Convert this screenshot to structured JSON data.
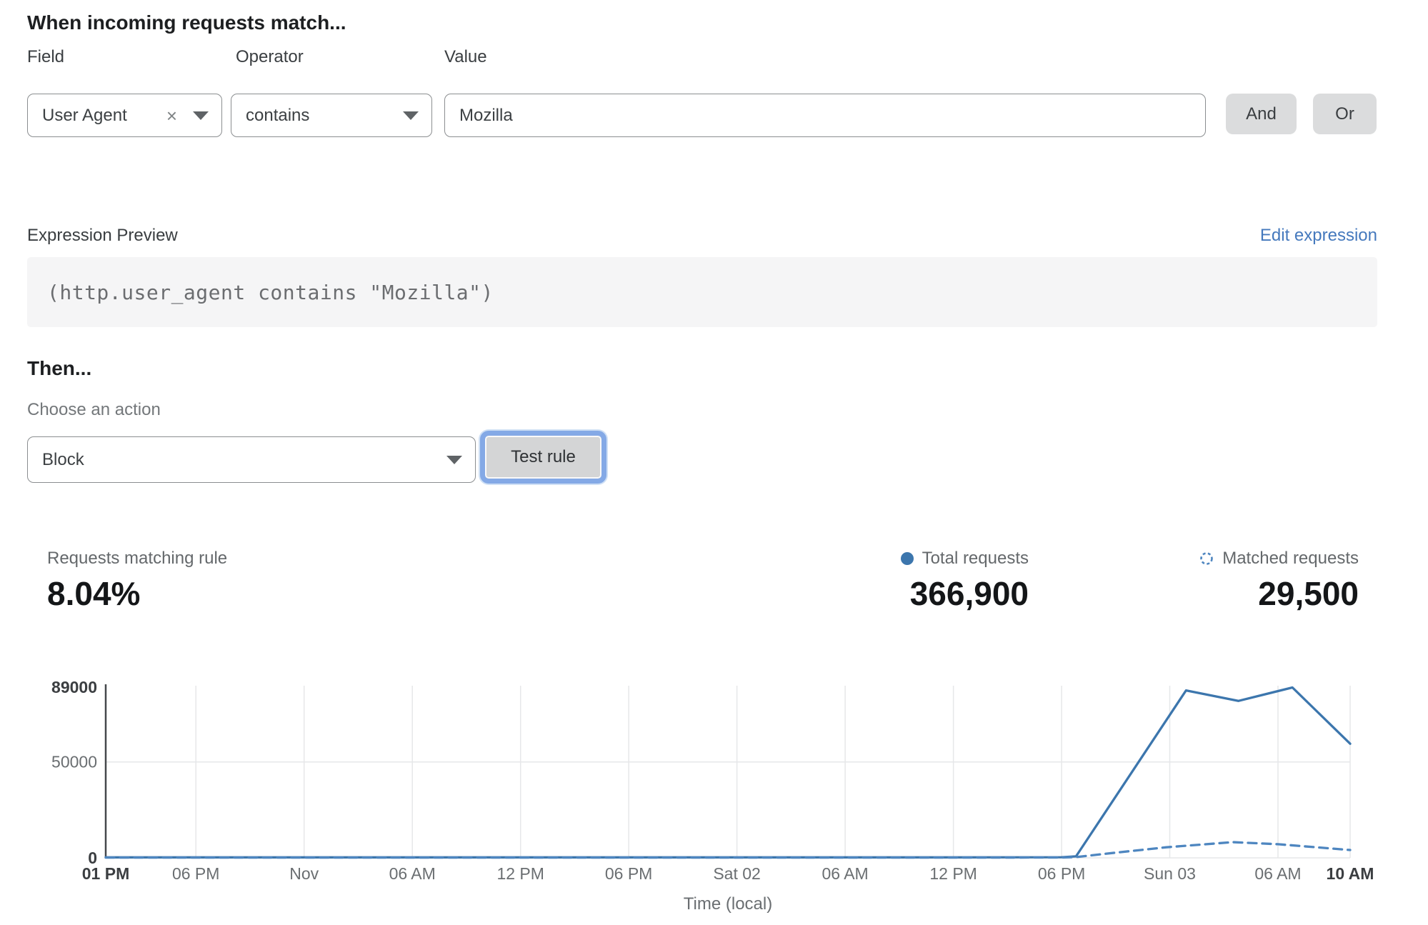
{
  "rule_builder": {
    "heading": "When incoming requests match...",
    "field": {
      "label": "Field",
      "value": "User Agent"
    },
    "operator": {
      "label": "Operator",
      "value": "contains"
    },
    "value": {
      "label": "Value",
      "value": "Mozilla"
    },
    "and_label": "And",
    "or_label": "Or"
  },
  "expression": {
    "label": "Expression Preview",
    "edit_link": "Edit expression",
    "code": "(http.user_agent contains \"Mozilla\")"
  },
  "action": {
    "heading": "Then...",
    "choose_label": "Choose an action",
    "selected": "Block",
    "test_button": "Test rule"
  },
  "stats": {
    "matching": {
      "label": "Requests matching rule",
      "value": "8.04%"
    },
    "total": {
      "label": "Total requests",
      "value": "366,900"
    },
    "matched": {
      "label": "Matched requests",
      "value": "29,500"
    }
  },
  "icons": {
    "clear": "×"
  },
  "colors": {
    "line_solid": "#3c76ad",
    "line_dashed": "#4e86c0",
    "link": "#4579bd",
    "focus_ring": "#84a9e6",
    "grid": "#e6e7e9",
    "axis": "#46494c",
    "tick": "#6a6e71",
    "tick_bold": "#3b3e41"
  },
  "chart_data": {
    "type": "line",
    "title": "",
    "xlabel": "Time (local)",
    "ylabel": "",
    "ylim": [
      0,
      89000
    ],
    "grid": true,
    "legend_position": "top-right (shown as stats legend)",
    "x_range_hours": [
      0,
      69
    ],
    "x_ticks": [
      {
        "label": "01 PM",
        "hour": 0,
        "bold": true
      },
      {
        "label": "06 PM",
        "hour": 5
      },
      {
        "label": "Nov",
        "hour": 11
      },
      {
        "label": "06 AM",
        "hour": 17
      },
      {
        "label": "12 PM",
        "hour": 23
      },
      {
        "label": "06 PM",
        "hour": 29
      },
      {
        "label": "Sat 02",
        "hour": 35
      },
      {
        "label": "06 AM",
        "hour": 41
      },
      {
        "label": "12 PM",
        "hour": 47
      },
      {
        "label": "06 PM",
        "hour": 53
      },
      {
        "label": "Sun 03",
        "hour": 59
      },
      {
        "label": "06 AM",
        "hour": 65
      },
      {
        "label": "10 AM",
        "hour": 69,
        "bold": true
      }
    ],
    "y_ticks": [
      {
        "label": "0",
        "value": 0,
        "bold": true
      },
      {
        "label": "50000",
        "value": 50000
      },
      {
        "label": "89000",
        "value": 89000,
        "bold": true
      }
    ],
    "series": [
      {
        "name": "Total requests",
        "style": "solid",
        "color": "#3c76ad",
        "points": [
          [
            0,
            250
          ],
          [
            5,
            250
          ],
          [
            11,
            250
          ],
          [
            17,
            250
          ],
          [
            23,
            250
          ],
          [
            29,
            250
          ],
          [
            35,
            250
          ],
          [
            41,
            250
          ],
          [
            47,
            250
          ],
          [
            53,
            350
          ],
          [
            53.8,
            800
          ],
          [
            59.9,
            87300
          ],
          [
            62.8,
            81800
          ],
          [
            65.8,
            88800
          ],
          [
            69,
            59500
          ]
        ]
      },
      {
        "name": "Matched requests",
        "style": "dashed",
        "color": "#4e86c0",
        "points": [
          [
            0,
            150
          ],
          [
            5,
            150
          ],
          [
            11,
            150
          ],
          [
            17,
            150
          ],
          [
            23,
            150
          ],
          [
            29,
            150
          ],
          [
            35,
            150
          ],
          [
            41,
            150
          ],
          [
            47,
            150
          ],
          [
            53,
            200
          ],
          [
            53.8,
            400
          ],
          [
            56,
            2700
          ],
          [
            58.8,
            5500
          ],
          [
            62.5,
            8200
          ],
          [
            65,
            7100
          ],
          [
            69,
            4100
          ]
        ]
      }
    ]
  }
}
